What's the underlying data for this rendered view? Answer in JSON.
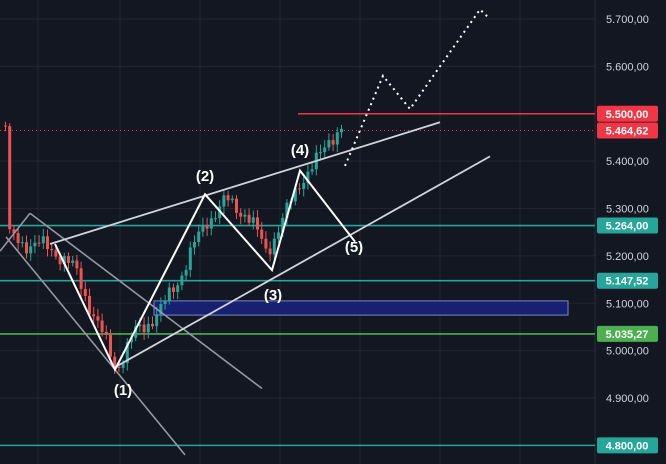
{
  "chart_data": {
    "type": "candlestick",
    "y_axis": {
      "range": [
        4780,
        5730
      ],
      "ticks": [
        {
          "value": 5700,
          "label": "5.700,00"
        },
        {
          "value": 5600,
          "label": "5.600,00"
        },
        {
          "value": 5400,
          "label": "5.400,00"
        },
        {
          "value": 5300,
          "label": "5.300,00"
        },
        {
          "value": 5200,
          "label": "5.200,00"
        },
        {
          "value": 5100,
          "label": "5.100,00"
        },
        {
          "value": 5000,
          "label": "5.000,00"
        },
        {
          "value": 4900,
          "label": "4.900,00"
        }
      ]
    },
    "price_lines": [
      {
        "value": 5500.0,
        "label": "5.500,00",
        "color": "#f23645",
        "style": "solid"
      },
      {
        "value": 5464.62,
        "label": "5.464,62",
        "color": "#f23645",
        "style": "dotted"
      },
      {
        "value": 5264.0,
        "label": "5.264,00",
        "color": "#26a69a",
        "style": "solid"
      },
      {
        "value": 5147.52,
        "label": "5.147,52",
        "color": "#26a69a",
        "style": "solid"
      },
      {
        "value": 5035.27,
        "label": "5.035,27",
        "color": "#4caf50",
        "style": "solid"
      },
      {
        "value": 4800.0,
        "label": "4.800,00",
        "color": "#26a69a",
        "style": "solid"
      }
    ],
    "zone": {
      "low": 5075,
      "high": 5105,
      "fill": "#1a237e",
      "border": "#7986cb"
    },
    "wave_points": [
      {
        "label": "(1)",
        "value": 4960
      },
      {
        "label": "(2)",
        "value": 5330
      },
      {
        "label": "(3)",
        "value": 5170
      },
      {
        "label": "(4)",
        "value": 5380
      },
      {
        "label": "(5)",
        "value": 5230
      }
    ],
    "projection": [
      5400,
      5580,
      5510,
      5720
    ],
    "colors": {
      "up": "#26a69a",
      "down": "#ef5350",
      "background": "#131722",
      "grid": "#2a2e39"
    }
  }
}
